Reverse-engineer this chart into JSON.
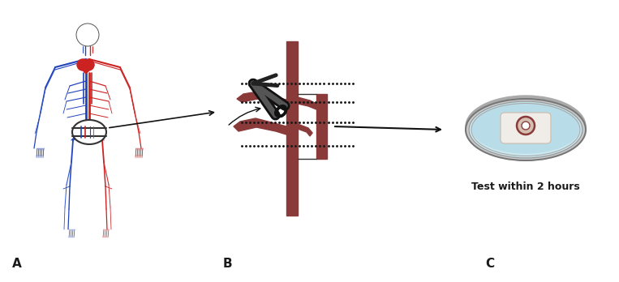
{
  "bg_color": "#ffffff",
  "vessel_color": "#8B3A3A",
  "text_color": "#1a1a1a",
  "label_A": "A",
  "label_B": "B",
  "label_C": "C",
  "text_C": "Test within 2 hours",
  "dish_fill_color": "#cce8f0",
  "dot_color": "#1a1a1a",
  "red_vessel": "#cc2222",
  "blue_vessel": "#2244bb",
  "dark_vessel": "#7a2020"
}
